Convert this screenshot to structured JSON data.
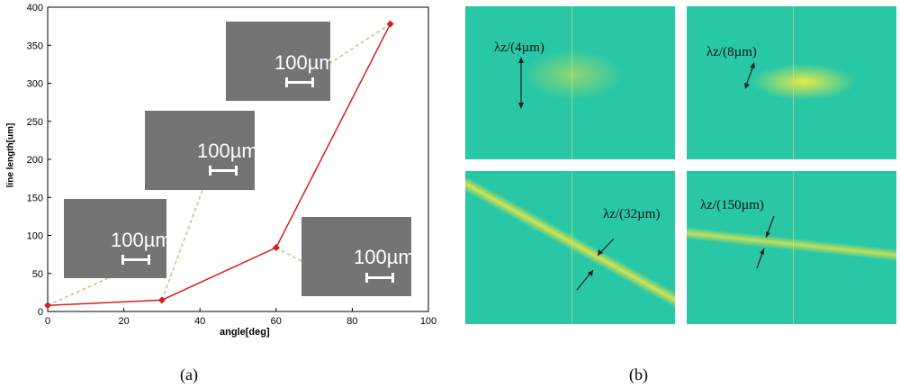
{
  "chart_data": {
    "type": "line",
    "xlabel": "angle[deg]",
    "ylabel": "line length[um]",
    "xlim": [
      0,
      100
    ],
    "ylim": [
      0,
      400
    ],
    "x_ticks": [
      "0",
      "20",
      "40",
      "60",
      "80",
      "100"
    ],
    "y_ticks": [
      "0",
      "50",
      "100",
      "150",
      "200",
      "250",
      "300",
      "350",
      "400"
    ],
    "series": [
      {
        "x": [
          0,
          30,
          60,
          90
        ],
        "y": [
          8,
          15,
          84,
          378
        ],
        "color": "#d42020"
      }
    ],
    "grid": false,
    "legend": "none"
  },
  "insets": [
    {
      "scale_label": "100µm"
    },
    {
      "scale_label": "100µm"
    },
    {
      "scale_label": "100µm"
    },
    {
      "scale_label": "100µm"
    }
  ],
  "fft_panels": [
    {
      "label": "λz/(4µm)"
    },
    {
      "label": "λz/(8µm)"
    },
    {
      "label": "λz/(32µm)"
    },
    {
      "label": "λz/(150µm)"
    }
  ],
  "captions": {
    "a": "(a)",
    "b": "(b)"
  },
  "colors": {
    "line": "#d42020",
    "leader": "#c8c080",
    "fft_bg": "#29c7a6",
    "fft_glow": "#e5e14a"
  }
}
